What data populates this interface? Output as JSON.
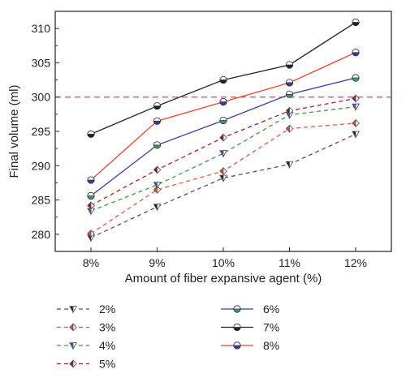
{
  "chart_data": {
    "type": "line",
    "xlabel": "Amount of fiber expansive agent (%)",
    "ylabel": "Final volume (ml)",
    "categories": [
      "8%",
      "9%",
      "10%",
      "11%",
      "12%"
    ],
    "ylim": [
      277.5,
      312.5
    ],
    "yticks": [
      280,
      285,
      290,
      295,
      300,
      305,
      310
    ],
    "reference_line": {
      "y": 300,
      "color": "#d0466e",
      "style": "dashed"
    },
    "grid": false,
    "legend_position": "bottom",
    "series": [
      {
        "name": "2%",
        "values": [
          279.5,
          284.0,
          288.2,
          290.2,
          294.6
        ],
        "color": "#555555",
        "line": "dashed",
        "marker": "triangle-down",
        "marker_fill": "#222222"
      },
      {
        "name": "3%",
        "values": [
          280.1,
          286.5,
          289.2,
          295.4,
          296.2
        ],
        "color": "#e0584a",
        "line": "dashed",
        "marker": "diamond",
        "marker_fill": "#e8442e"
      },
      {
        "name": "4%",
        "values": [
          283.4,
          287.2,
          291.8,
          297.4,
          298.6
        ],
        "color": "#3f9a3f",
        "line": "dashed",
        "marker": "triangle-down",
        "marker_fill": "#4a4ad0"
      },
      {
        "name": "5%",
        "values": [
          284.2,
          289.4,
          294.1,
          298.0,
          299.8
        ],
        "color": "#a0203a",
        "line": "dashed",
        "marker": "diamond",
        "marker_fill": "#8b1a1a"
      },
      {
        "name": "6%",
        "values": [
          285.6,
          293.0,
          296.6,
          300.4,
          302.8
        ],
        "color": "#3a3aa8",
        "line": "solid",
        "marker": "circle-half",
        "marker_fill": "#3aa05a"
      },
      {
        "name": "7%",
        "values": [
          294.6,
          298.7,
          302.5,
          304.7,
          310.9
        ],
        "color": "#222222",
        "line": "solid",
        "marker": "circle-half",
        "marker_fill": "#222222"
      },
      {
        "name": "8%",
        "values": [
          287.9,
          296.5,
          299.3,
          302.1,
          306.5
        ],
        "color": "#e8442e",
        "line": "solid",
        "marker": "circle-half",
        "marker_fill": "#3a3aa8"
      }
    ]
  }
}
